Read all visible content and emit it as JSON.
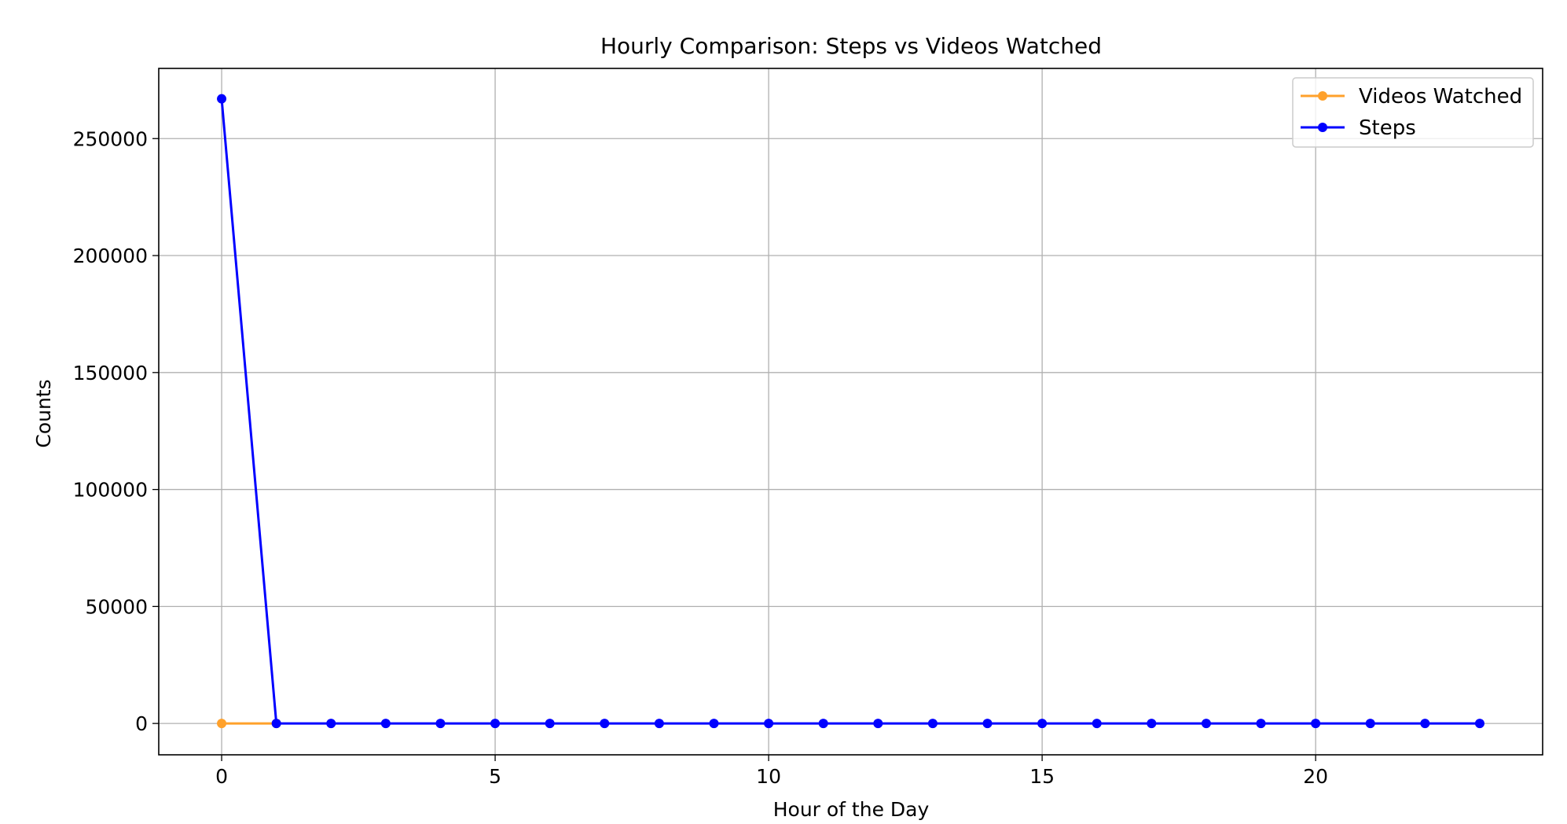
{
  "chart_data": {
    "type": "line",
    "title": "Hourly Comparison: Steps vs Videos Watched",
    "xlabel": "Hour of the Day",
    "ylabel": "Counts",
    "xlim": [
      -1.15,
      24.15
    ],
    "ylim": [
      -13400,
      280000
    ],
    "xticks": [
      0,
      5,
      10,
      15,
      20
    ],
    "xtick_labels": [
      "0",
      "5",
      "10",
      "15",
      "20"
    ],
    "yticks": [
      0,
      50000,
      100000,
      150000,
      200000,
      250000
    ],
    "ytick_labels": [
      "0",
      "50000",
      "100000",
      "150000",
      "200000",
      "250000"
    ],
    "grid": true,
    "legend_position": "top-right",
    "series": [
      {
        "name": "Videos Watched",
        "color": "#ffa12b",
        "x": [
          0,
          1
        ],
        "values": [
          0,
          0
        ]
      },
      {
        "name": "Steps",
        "color": "#0000ff",
        "x": [
          0,
          1,
          2,
          3,
          4,
          5,
          6,
          7,
          8,
          9,
          10,
          11,
          12,
          13,
          14,
          15,
          16,
          17,
          18,
          19,
          20,
          21,
          22,
          23
        ],
        "values": [
          267000,
          0,
          0,
          0,
          0,
          0,
          0,
          0,
          0,
          0,
          0,
          0,
          0,
          0,
          0,
          0,
          0,
          0,
          0,
          0,
          0,
          0,
          0,
          0
        ]
      }
    ]
  }
}
